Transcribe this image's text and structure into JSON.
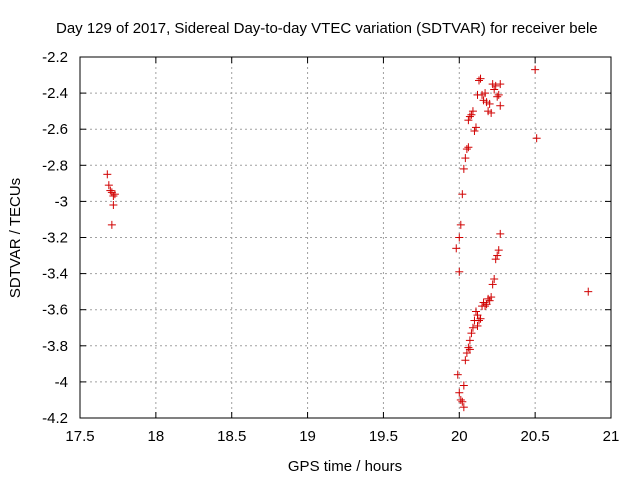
{
  "chart_data": {
    "type": "scatter",
    "title": "Day 129 of 2017, Sidereal Day-to-day VTEC variation (SDTVAR) for receiver bele",
    "xlabel": "GPS time / hours",
    "ylabel": "SDTVAR / TECUs",
    "xlim": [
      17.5,
      21
    ],
    "ylim": [
      -4.2,
      -2.2
    ],
    "xticks": [
      "17.5",
      "18",
      "18.5",
      "19",
      "19.5",
      "20",
      "20.5",
      "21"
    ],
    "yticks": [
      "-2.2",
      "-2.4",
      "-2.6",
      "-2.8",
      "-3",
      "-3.2",
      "-3.4",
      "-3.6",
      "-3.8",
      "-4",
      "-4.2"
    ],
    "grid": true,
    "marker": "+",
    "color": "#d00000",
    "series": [
      {
        "name": "SDTVAR",
        "points": [
          [
            17.68,
            -2.85
          ],
          [
            17.69,
            -2.91
          ],
          [
            17.7,
            -2.94
          ],
          [
            17.71,
            -2.95
          ],
          [
            17.72,
            -2.97
          ],
          [
            17.73,
            -2.96
          ],
          [
            17.72,
            -3.02
          ],
          [
            17.71,
            -3.13
          ],
          [
            19.98,
            -3.26
          ],
          [
            20.0,
            -3.2
          ],
          [
            20.01,
            -3.13
          ],
          [
            20.02,
            -2.96
          ],
          [
            20.0,
            -3.39
          ],
          [
            20.03,
            -2.82
          ],
          [
            20.04,
            -2.76
          ],
          [
            20.05,
            -2.71
          ],
          [
            20.06,
            -2.7
          ],
          [
            20.06,
            -2.55
          ],
          [
            20.07,
            -2.53
          ],
          [
            20.08,
            -2.52
          ],
          [
            20.09,
            -2.5
          ],
          [
            20.1,
            -2.61
          ],
          [
            20.11,
            -2.59
          ],
          [
            20.12,
            -2.41
          ],
          [
            20.13,
            -2.33
          ],
          [
            20.14,
            -2.32
          ],
          [
            20.15,
            -2.41
          ],
          [
            20.16,
            -2.44
          ],
          [
            20.17,
            -2.4
          ],
          [
            20.18,
            -2.45
          ],
          [
            20.19,
            -2.5
          ],
          [
            20.2,
            -2.46
          ],
          [
            20.21,
            -2.51
          ],
          [
            20.22,
            -2.35
          ],
          [
            20.23,
            -2.38
          ],
          [
            20.24,
            -2.36
          ],
          [
            20.25,
            -2.42
          ],
          [
            20.26,
            -2.41
          ],
          [
            20.27,
            -2.35
          ],
          [
            20.27,
            -2.47
          ],
          [
            20.27,
            -3.18
          ],
          [
            20.26,
            -3.27
          ],
          [
            20.25,
            -3.3
          ],
          [
            20.24,
            -3.32
          ],
          [
            20.23,
            -3.43
          ],
          [
            20.22,
            -3.46
          ],
          [
            20.21,
            -3.53
          ],
          [
            20.2,
            -3.55
          ],
          [
            20.19,
            -3.54
          ],
          [
            20.18,
            -3.57
          ],
          [
            20.17,
            -3.58
          ],
          [
            20.16,
            -3.56
          ],
          [
            20.15,
            -3.58
          ],
          [
            20.14,
            -3.65
          ],
          [
            20.13,
            -3.66
          ],
          [
            20.12,
            -3.63
          ],
          [
            20.12,
            -3.69
          ],
          [
            20.11,
            -3.61
          ],
          [
            20.1,
            -3.66
          ],
          [
            20.09,
            -3.7
          ],
          [
            20.08,
            -3.73
          ],
          [
            20.07,
            -3.77
          ],
          [
            20.06,
            -3.81
          ],
          [
            20.07,
            -3.82
          ],
          [
            20.05,
            -3.84
          ],
          [
            20.04,
            -3.88
          ],
          [
            19.99,
            -3.96
          ],
          [
            20.03,
            -4.02
          ],
          [
            20.0,
            -4.06
          ],
          [
            20.01,
            -4.1
          ],
          [
            20.02,
            -4.11
          ],
          [
            20.03,
            -4.14
          ],
          [
            20.5,
            -2.27
          ],
          [
            20.51,
            -2.65
          ],
          [
            20.85,
            -3.5
          ]
        ]
      }
    ]
  }
}
